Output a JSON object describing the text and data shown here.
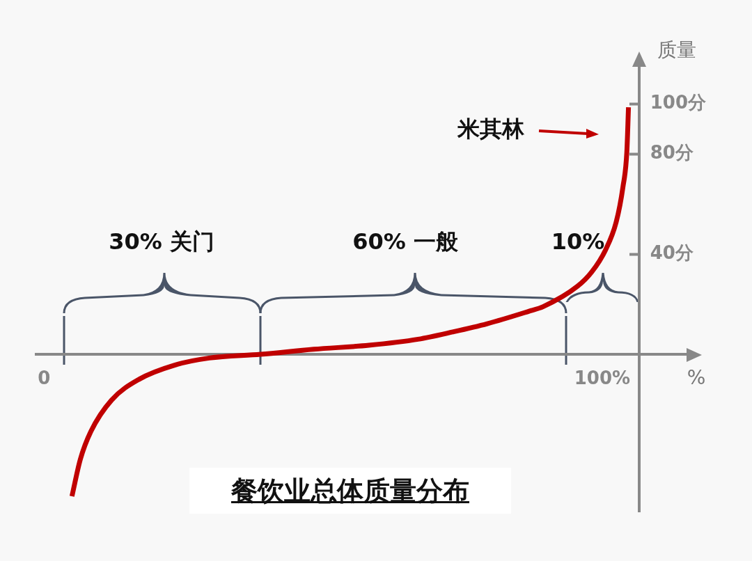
{
  "chart_data": {
    "type": "line",
    "title": "餐饮业总体质量分布",
    "xlabel": "%",
    "ylabel": "质量",
    "x": [
      5.0,
      6.5,
      8.4,
      12.1,
      17.1,
      23.3,
      29.6,
      38.8,
      48.3,
      58.2,
      67.0,
      73.2,
      79.4,
      86.9,
      89.4,
      95.6,
      98.1,
      100.6,
      102.5,
      103.7,
      104.4,
      104.7
    ],
    "series": [
      {
        "color": "#c00000",
        "values": [
          -56.7,
          -42,
          -30.8,
          -18.3,
          -9.9,
          -4.4,
          -1.5,
          0,
          2,
          3.6,
          6,
          8.9,
          12.2,
          17.2,
          19.0,
          27.2,
          32.8,
          41.7,
          52.8,
          66.7,
          80.6,
          98.6
        ]
      }
    ],
    "xlim": [
      -1.4,
      115.6
    ],
    "ylim": [
      -62.8,
      119.2
    ],
    "xticks": [
      0,
      {
        "value": 100,
        "label": "100%"
      }
    ],
    "yticks": [
      {
        "value": 40,
        "label": "40分"
      },
      {
        "value": 80,
        "label": "80分"
      },
      {
        "value": 100,
        "label": "100分"
      }
    ],
    "annotations": [
      "30% 关门",
      "60% 一般",
      "10%",
      "米其林"
    ],
    "grid": false,
    "legend": false,
    "marker": "none",
    "line_style": "solid"
  }
}
